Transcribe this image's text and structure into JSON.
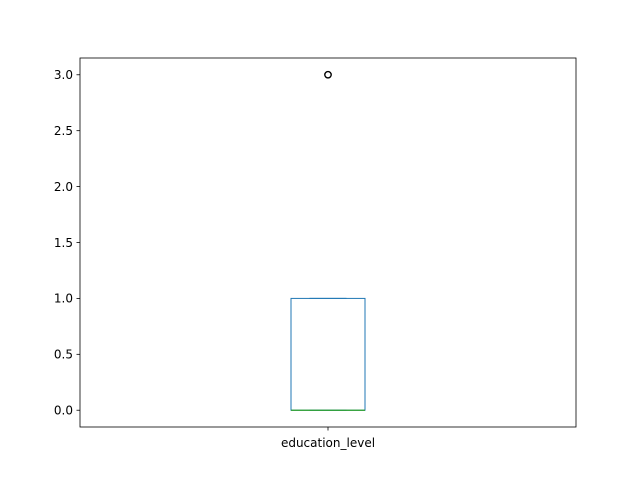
{
  "chart_data": {
    "type": "box",
    "title": "",
    "xlabel": "",
    "ylabel": "",
    "categories": [
      "education_level"
    ],
    "ylim": [
      -0.15,
      3.15
    ],
    "yticks": [
      0.0,
      0.5,
      1.0,
      1.5,
      2.0,
      2.5,
      3.0
    ],
    "ytick_labels": [
      "0.0",
      "0.5",
      "1.0",
      "1.5",
      "2.0",
      "2.5",
      "3.0"
    ],
    "grid": false,
    "boxes": [
      {
        "category": "education_level",
        "whisker_low": 0.0,
        "q1": 0.0,
        "median": 0.0,
        "q3": 1.0,
        "whisker_high": 1.0,
        "outliers": [
          3.0
        ]
      }
    ],
    "colors": {
      "box": "#1f77b4",
      "median": "#2ca02c",
      "outlier": "#000000",
      "axes": "#000000"
    }
  }
}
